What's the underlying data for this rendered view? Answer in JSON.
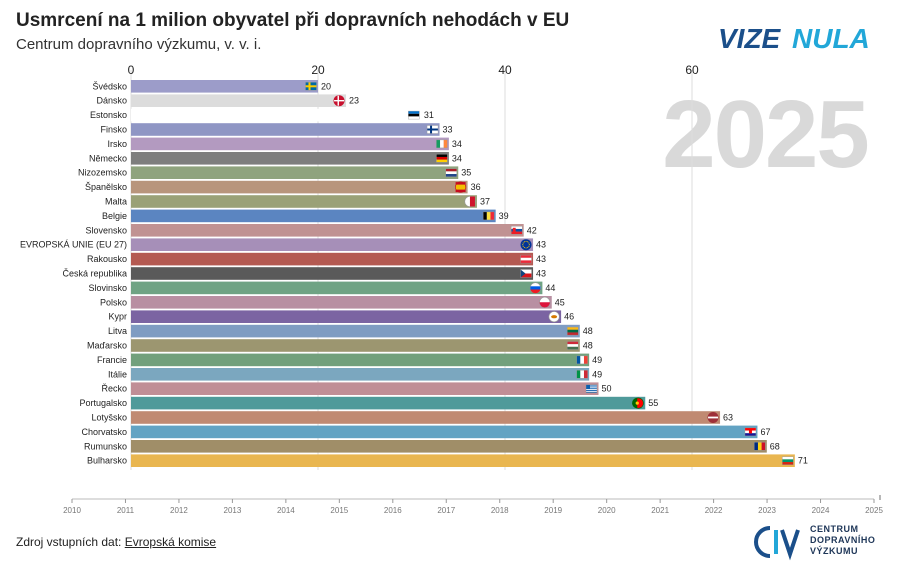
{
  "header": {
    "title": "Usmrcení na 1 milion obyvatel při dopravních nehodách v EU",
    "subtitle": "Centrum dopravního výzkumu, v. v. i."
  },
  "logo": {
    "part1": "VIZE",
    "part2": "NULA"
  },
  "big_year": "2025",
  "footer": {
    "source_prefix": "Zdroj vstupních dat: ",
    "source_link": "Evropská komise",
    "org_line1": "CENTRUM",
    "org_line2": "DOPRAVNÍHO",
    "org_line3": "VÝZKUMU"
  },
  "colors": {
    "gridline": "#dddddd",
    "timeline": "#bbbbbb",
    "big_year": "#d9d9d9",
    "logo_blue": "#1b4f8a",
    "logo_cyan": "#22a7d8"
  },
  "chart_data": {
    "type": "bar",
    "orientation": "horizontal",
    "title": "Usmrcení na 1 milion obyvatel při dopravních nehodách v EU",
    "xlim": [
      0,
      80
    ],
    "xticks": [
      0,
      20,
      40,
      60
    ],
    "grid": true,
    "timeline_years": [
      "2010",
      "2011",
      "2012",
      "2013",
      "2014",
      "2015",
      "2016",
      "2017",
      "2018",
      "2019",
      "2020",
      "2021",
      "2022",
      "2023",
      "2024",
      "2025"
    ],
    "current_year": "2025",
    "bars": [
      {
        "country": "Švédsko",
        "value": 20,
        "color": "#9c9cc9",
        "flag": "se"
      },
      {
        "country": "Dánsko",
        "value": 23,
        "color": "#dcdcdc",
        "flag": "dk"
      },
      {
        "country": "Estonsko",
        "value": 31,
        "color": "#ffffff",
        "flag": "ee"
      },
      {
        "country": "Finsko",
        "value": 33,
        "color": "#8f96c4",
        "flag": "fi"
      },
      {
        "country": "Irsko",
        "value": 34,
        "color": "#b39ac0",
        "flag": "ie"
      },
      {
        "country": "Německo",
        "value": 34,
        "color": "#7e7e7e",
        "flag": "de"
      },
      {
        "country": "Nizozemsko",
        "value": 35,
        "color": "#8fa37e",
        "flag": "nl"
      },
      {
        "country": "Španělsko",
        "value": 36,
        "color": "#b8957c",
        "flag": "es"
      },
      {
        "country": "Malta",
        "value": 37,
        "color": "#9aa177",
        "flag": "mt"
      },
      {
        "country": "Belgie",
        "value": 39,
        "color": "#5b85c1",
        "flag": "be"
      },
      {
        "country": "Slovensko",
        "value": 42,
        "color": "#c09292",
        "flag": "sk"
      },
      {
        "country": "EVROPSKÁ UNIE (EU 27)",
        "value": 43,
        "color": "#a68fb8",
        "flag": "eu"
      },
      {
        "country": "Rakousko",
        "value": 43,
        "color": "#b45a52",
        "flag": "at"
      },
      {
        "country": "Česká republika",
        "value": 43,
        "color": "#5a5a5a",
        "flag": "cz"
      },
      {
        "country": "Slovinsko",
        "value": 44,
        "color": "#6fa384",
        "flag": "si"
      },
      {
        "country": "Polsko",
        "value": 45,
        "color": "#b88fa2",
        "flag": "pl"
      },
      {
        "country": "Kypr",
        "value": 46,
        "color": "#7b64a2",
        "flag": "cy"
      },
      {
        "country": "Litva",
        "value": 48,
        "color": "#7f9cc2",
        "flag": "lt"
      },
      {
        "country": "Maďarsko",
        "value": 48,
        "color": "#9c9670",
        "flag": "hu"
      },
      {
        "country": "Francie",
        "value": 49,
        "color": "#72a07c",
        "flag": "fr"
      },
      {
        "country": "Itálie",
        "value": 49,
        "color": "#7ba7bf",
        "flag": "it"
      },
      {
        "country": "Řecko",
        "value": 50,
        "color": "#c08e96",
        "flag": "gr"
      },
      {
        "country": "Portugalsko",
        "value": 55,
        "color": "#4f9a9a",
        "flag": "pt"
      },
      {
        "country": "Lotyšsko",
        "value": 63,
        "color": "#c08a72",
        "flag": "lv"
      },
      {
        "country": "Chorvatsko",
        "value": 67,
        "color": "#62a3c3",
        "flag": "hr"
      },
      {
        "country": "Rumunsko",
        "value": 68,
        "color": "#a08e68",
        "flag": "ro"
      },
      {
        "country": "Bulharsko",
        "value": 71,
        "color": "#e9b650",
        "flag": "bg"
      }
    ]
  }
}
